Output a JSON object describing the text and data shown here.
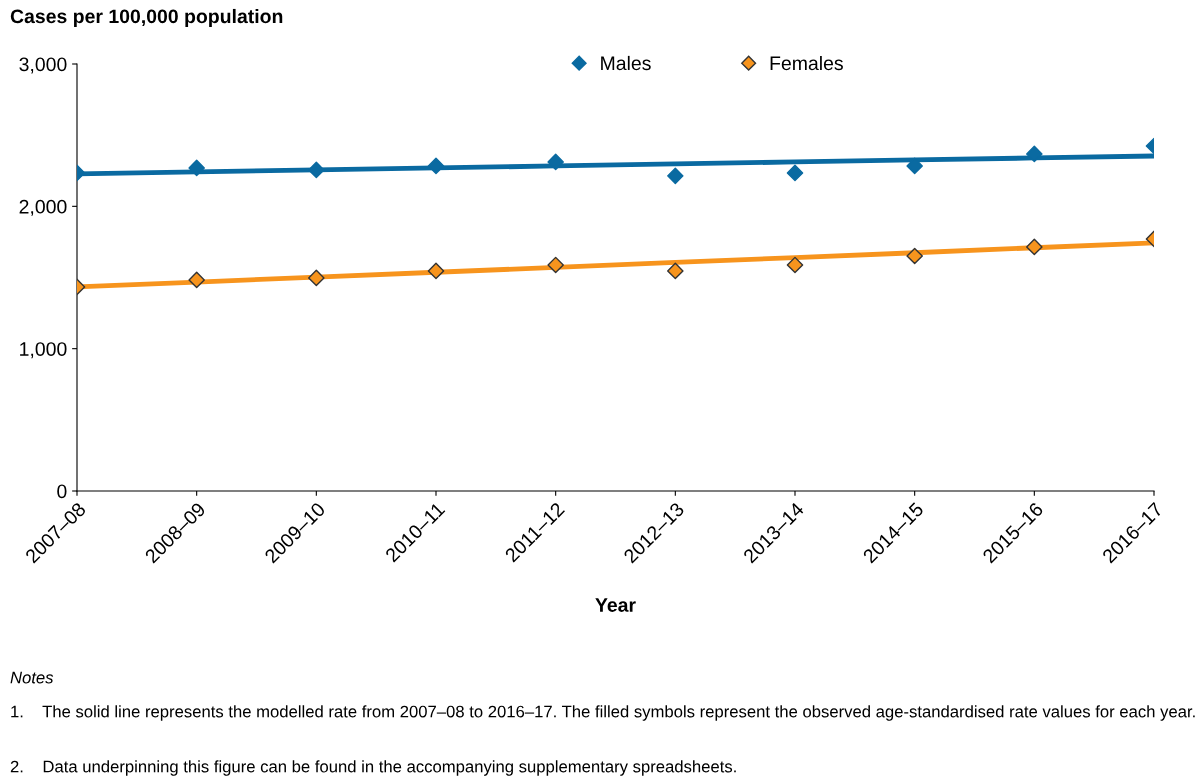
{
  "chart_data": {
    "type": "scatter",
    "ylabel": "Cases per 100,000 population",
    "xlabel": "Year",
    "categories": [
      "2007–08",
      "2008–09",
      "2009–10",
      "2010–11",
      "2011–12",
      "2012–13",
      "2013–14",
      "2014–15",
      "2015–16",
      "2016–17"
    ],
    "series": [
      {
        "name": "Males",
        "color": "#0a6aa1",
        "marker": "diamond",
        "values": [
          2235,
          2270,
          2256,
          2284,
          2312,
          2214,
          2235,
          2284,
          2368,
          2424
        ]
      },
      {
        "name": "Females",
        "color": "#f7941d",
        "marker": "diamond",
        "values": [
          1434,
          1483,
          1497,
          1546,
          1588,
          1546,
          1588,
          1651,
          1715,
          1771
        ]
      },
      {
        "type": "line",
        "color": "#0a6aa1",
        "marker": "none",
        "values": [
          2228,
          2242,
          2256,
          2270,
          2284,
          2298,
          2312,
          2326,
          2340,
          2354
        ]
      },
      {
        "type": "line",
        "color": "#f7941d",
        "marker": "none",
        "values": [
          1434,
          1468,
          1503,
          1537,
          1571,
          1606,
          1640,
          1674,
          1709,
          1743
        ]
      }
    ],
    "ylim": [
      0,
      3000
    ],
    "yticks": [
      0,
      {
        "value": 1000,
        "label": "1,000"
      },
      {
        "value": 2000,
        "label": "2,000"
      },
      {
        "value": 3000,
        "label": "3,000"
      }
    ],
    "grid": false,
    "legend": "top",
    "annotations": [
      "Notes",
      "1.    The solid line represents the modelled rate from 2007–08 to 2016–17. The filled symbols represent the observed age-standardised rate values for each year.",
      "2.    Data underpinning this figure can be found in the accompanying supplementary spreadsheets."
    ]
  }
}
